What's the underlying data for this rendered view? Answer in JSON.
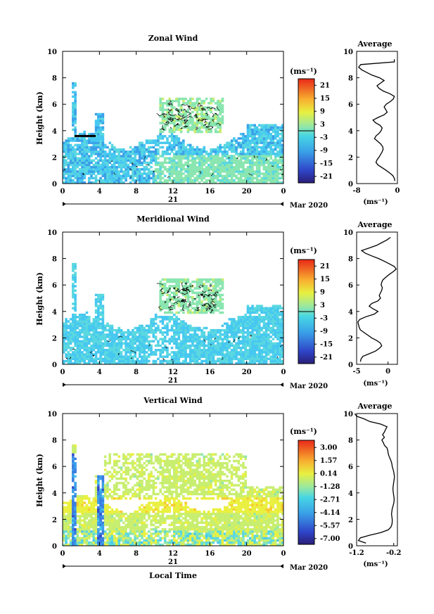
{
  "panel_units": "(ms⁻¹)",
  "date_label": "Mar 2020",
  "day_label": "21",
  "xlabel_bottom": "Local Time",
  "chart_data": [
    {
      "type": "heatmap",
      "title": "Zonal Wind",
      "ylabel": "Height (km)",
      "x_ticks": [
        "0",
        "4",
        "8",
        "12",
        "16",
        "20",
        "0"
      ],
      "xlim": [
        0,
        24
      ],
      "y_ticks": [
        "0",
        "2",
        "4",
        "6",
        "8",
        "10"
      ],
      "ylim": [
        0,
        10
      ],
      "colorbar": {
        "label": "(ms⁻¹)",
        "ticks": [
          "21",
          "15",
          "9",
          "3",
          "-3",
          "-9",
          "-15",
          "-21"
        ],
        "range": [
          -24,
          24
        ]
      },
      "average_profile": {
        "title": "Average",
        "xlim": [
          -8,
          0
        ],
        "x_ticks": [
          "-8",
          "0"
        ],
        "xlabel": "(ms⁻¹)"
      }
    },
    {
      "type": "heatmap",
      "title": "Meridional Wind",
      "ylabel": "Height (km)",
      "x_ticks": [
        "0",
        "4",
        "8",
        "12",
        "16",
        "20",
        "0"
      ],
      "xlim": [
        0,
        24
      ],
      "y_ticks": [
        "0",
        "2",
        "4",
        "6",
        "8",
        "10"
      ],
      "ylim": [
        0,
        10
      ],
      "colorbar": {
        "label": "(ms⁻¹)",
        "ticks": [
          "21",
          "15",
          "9",
          "3",
          "-3",
          "-9",
          "-15",
          "-21"
        ],
        "range": [
          -24,
          24
        ]
      },
      "average_profile": {
        "title": "Average",
        "xlim": [
          -5,
          1.5
        ],
        "x_ticks": [
          "-5",
          "0"
        ],
        "xlabel": "(ms⁻¹)"
      }
    },
    {
      "type": "heatmap",
      "title": "Vertical Wind",
      "ylabel": "Height (km)",
      "x_ticks": [
        "0",
        "4",
        "8",
        "12",
        "16",
        "20",
        "0"
      ],
      "xlim": [
        0,
        24
      ],
      "y_ticks": [
        "0",
        "2",
        "4",
        "6",
        "8",
        "10"
      ],
      "ylim": [
        0,
        10
      ],
      "xlabel": "Local Time",
      "colorbar": {
        "label": "(ms⁻¹)",
        "ticks": [
          "3.00",
          "1.57",
          "0.14",
          "-1.28",
          "-2.71",
          "-4.14",
          "-5.57",
          "-7.00"
        ],
        "range": [
          -7.7,
          3.7
        ]
      },
      "average_profile": {
        "title": "Average",
        "xlim": [
          -1.2,
          -0.1
        ],
        "x_ticks": [
          "-1.2",
          "-0.2"
        ],
        "xlabel": "(ms⁻¹)"
      }
    }
  ]
}
